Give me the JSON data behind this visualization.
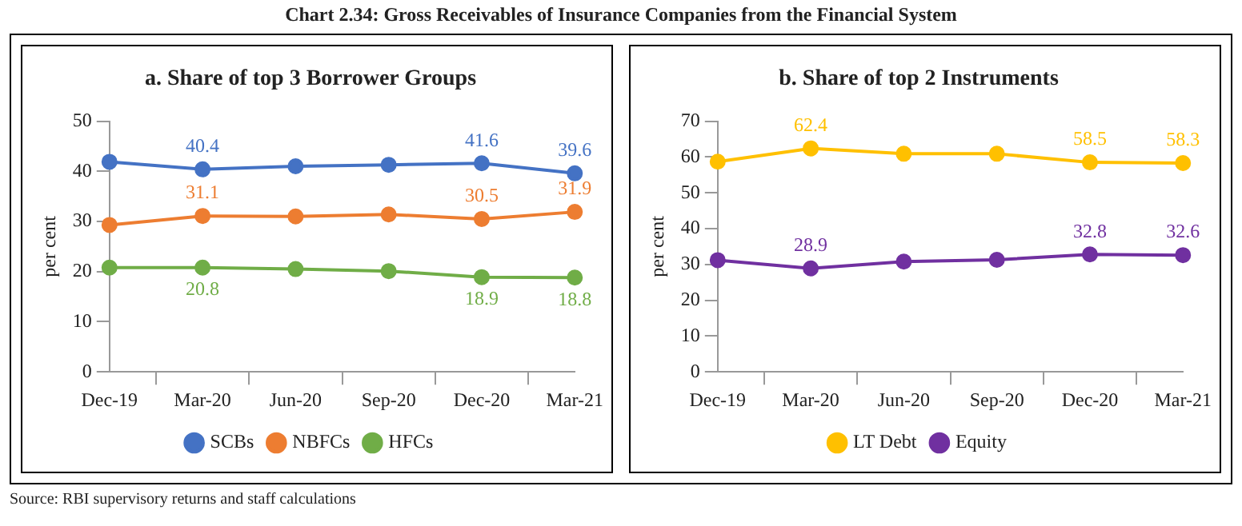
{
  "chart_data": [
    {
      "type": "line",
      "title": "Chart 2.34: Gross Receivables of Insurance Companies from the Financial System",
      "subtitle": "a. Share of top 3 Borrower Groups",
      "ylabel": "per cent",
      "categories": [
        "Dec-19",
        "Mar-20",
        "Jun-20",
        "Sep-20",
        "Dec-20",
        "Mar-21"
      ],
      "ylim": [
        0,
        50
      ],
      "yticks": [
        0,
        10,
        20,
        30,
        40,
        50
      ],
      "legend": "bottom",
      "marker": "circle",
      "annotations": [
        "Source: RBI supervisory returns and staff calculations"
      ],
      "series": [
        {
          "name": "SCBs",
          "color": "#4472c4",
          "values": [
            41.9,
            40.4,
            41.0,
            41.3,
            41.6,
            39.6
          ],
          "value_labels": [
            null,
            "40.4",
            null,
            null,
            "41.6",
            "39.6"
          ]
        },
        {
          "name": "NBFCs",
          "color": "#ed7d31",
          "values": [
            29.3,
            31.1,
            31.0,
            31.4,
            30.5,
            31.9
          ],
          "value_labels": [
            null,
            "31.1",
            null,
            null,
            "30.5",
            "31.9"
          ]
        },
        {
          "name": "HFCs",
          "color": "#70ad47",
          "values": [
            20.8,
            20.8,
            20.5,
            20.1,
            18.9,
            18.8
          ],
          "value_labels": [
            null,
            "20.8",
            null,
            null,
            "18.9",
            "18.8"
          ]
        }
      ]
    },
    {
      "type": "line",
      "title": "b. Share of top 2 Instruments",
      "ylabel": "per cent",
      "categories": [
        "Dec-19",
        "Mar-20",
        "Jun-20",
        "Sep-20",
        "Dec-20",
        "Mar-21"
      ],
      "ylim": [
        0,
        70
      ],
      "yticks": [
        0,
        10,
        20,
        30,
        40,
        50,
        60,
        70
      ],
      "legend": "bottom",
      "marker": "circle",
      "series": [
        {
          "name": "LT Debt",
          "color": "#ffc000",
          "values": [
            58.7,
            62.4,
            60.9,
            60.9,
            58.5,
            58.3
          ],
          "value_labels": [
            null,
            "62.4",
            null,
            null,
            "58.5",
            "58.3"
          ]
        },
        {
          "name": "Equity",
          "color": "#7030a0",
          "values": [
            31.2,
            28.9,
            30.8,
            31.3,
            32.8,
            32.6
          ],
          "value_labels": [
            null,
            "28.9",
            null,
            null,
            "32.8",
            "32.6"
          ]
        }
      ]
    }
  ]
}
